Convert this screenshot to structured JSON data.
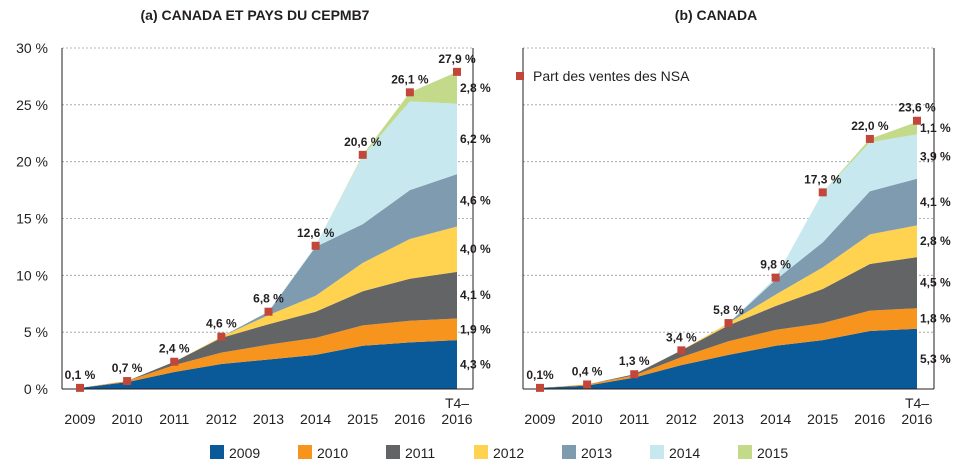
{
  "colors": {
    "s2009": "#0a5a99",
    "s2010": "#f7941d",
    "s2011": "#636466",
    "s2012": "#ffd24f",
    "s2013": "#7e9bb0",
    "s2014": "#c8e8f0",
    "s2015": "#c3da8b",
    "marker": "#c1473a"
  },
  "legend": {
    "items": [
      {
        "label": "2009",
        "color": "#0a5a99"
      },
      {
        "label": "2010",
        "color": "#f7941d"
      },
      {
        "label": "2011",
        "color": "#636466"
      },
      {
        "label": "2012",
        "color": "#ffd24f"
      },
      {
        "label": "2013",
        "color": "#7e9bb0"
      },
      {
        "label": "2014",
        "color": "#c8e8f0"
      },
      {
        "label": "2015",
        "color": "#c3da8b"
      }
    ]
  },
  "chart_data": [
    {
      "type": "area",
      "stacked": true,
      "title": "(a) CANADA ET PAYS DU CEPMB7",
      "ylim": [
        0,
        30
      ],
      "yticks": [
        "0 %",
        "5 %",
        "10 %",
        "15 %",
        "20 %",
        "25 %",
        "30 %"
      ],
      "categories": [
        "2009",
        "2010",
        "2011",
        "2012",
        "2013",
        "2014",
        "2015",
        "2016",
        "T4–2016"
      ],
      "series": [
        {
          "name": "2009",
          "values": [
            0.1,
            0.6,
            1.5,
            2.2,
            2.6,
            3.0,
            3.8,
            4.1,
            4.3
          ]
        },
        {
          "name": "2010",
          "values": [
            0,
            0.1,
            0.6,
            1.0,
            1.3,
            1.5,
            1.8,
            1.9,
            1.9
          ]
        },
        {
          "name": "2011",
          "values": [
            0,
            0,
            0.3,
            1.3,
            1.8,
            2.3,
            3.0,
            3.7,
            4.1
          ]
        },
        {
          "name": "2012",
          "values": [
            0,
            0,
            0,
            0.1,
            0.8,
            1.4,
            2.5,
            3.5,
            4.0
          ]
        },
        {
          "name": "2013",
          "values": [
            0,
            0,
            0,
            0,
            0.3,
            4.3,
            3.4,
            4.3,
            4.6
          ]
        },
        {
          "name": "2014",
          "values": [
            0,
            0,
            0,
            0,
            0,
            0.1,
            6.0,
            7.8,
            6.2
          ]
        },
        {
          "name": "2015",
          "values": [
            0,
            0,
            0,
            0,
            0,
            0,
            0.1,
            0.8,
            2.8
          ]
        }
      ],
      "marker_series": {
        "values": [
          0.1,
          0.7,
          2.4,
          4.6,
          6.8,
          12.6,
          20.6,
          26.1,
          27.9
        ],
        "labels": [
          "0,1 %",
          "0,7 %",
          "2,4 %",
          "4,6 %",
          "6,8 %",
          "12,6 %",
          "20,6 %",
          "26,1 %",
          "27,9 %"
        ]
      },
      "segment_labels": [
        "4,3 %",
        "1,9 %",
        "4,1 %",
        "4,0 %",
        "4,6 %",
        "6,2 %",
        "2,8 %"
      ]
    },
    {
      "type": "area",
      "stacked": true,
      "title": "(b) CANADA",
      "ylim": [
        0,
        30
      ],
      "categories": [
        "2009",
        "2010",
        "2011",
        "2012",
        "2013",
        "2014",
        "2015",
        "2016",
        "T4–2016"
      ],
      "series": [
        {
          "name": "2009",
          "values": [
            0.1,
            0.3,
            1.0,
            2.1,
            3.0,
            3.8,
            4.3,
            5.1,
            5.3
          ]
        },
        {
          "name": "2010",
          "values": [
            0,
            0.1,
            0.2,
            0.7,
            1.2,
            1.4,
            1.5,
            1.8,
            1.8
          ]
        },
        {
          "name": "2011",
          "values": [
            0,
            0,
            0.1,
            0.6,
            1.4,
            2.1,
            3.0,
            4.1,
            4.5
          ]
        },
        {
          "name": "2012",
          "values": [
            0,
            0,
            0,
            0,
            0.2,
            1.0,
            1.9,
            2.6,
            2.8
          ]
        },
        {
          "name": "2013",
          "values": [
            0,
            0,
            0,
            0,
            0,
            1.3,
            2.2,
            3.8,
            4.1
          ]
        },
        {
          "name": "2014",
          "values": [
            0,
            0,
            0,
            0,
            0,
            0.2,
            4.4,
            4.3,
            3.9
          ]
        },
        {
          "name": "2015",
          "values": [
            0,
            0,
            0,
            0,
            0,
            0,
            0,
            0.3,
            1.1
          ]
        }
      ],
      "marker_series": {
        "name": "Part des ventes des NSA",
        "values": [
          0.1,
          0.4,
          1.3,
          3.4,
          5.8,
          9.8,
          17.3,
          22.0,
          23.6
        ],
        "labels": [
          "0,1%",
          "0,4 %",
          "1,3 %",
          "3,4 %",
          "5,8 %",
          "9,8 %",
          "17,3 %",
          "22,0 %",
          "23,6 %"
        ]
      },
      "segment_labels": [
        "5,3 %",
        "1,8 %",
        "4,5 %",
        "2,8 %",
        "4,1 %",
        "3,9 %",
        "1,1 %"
      ]
    }
  ]
}
